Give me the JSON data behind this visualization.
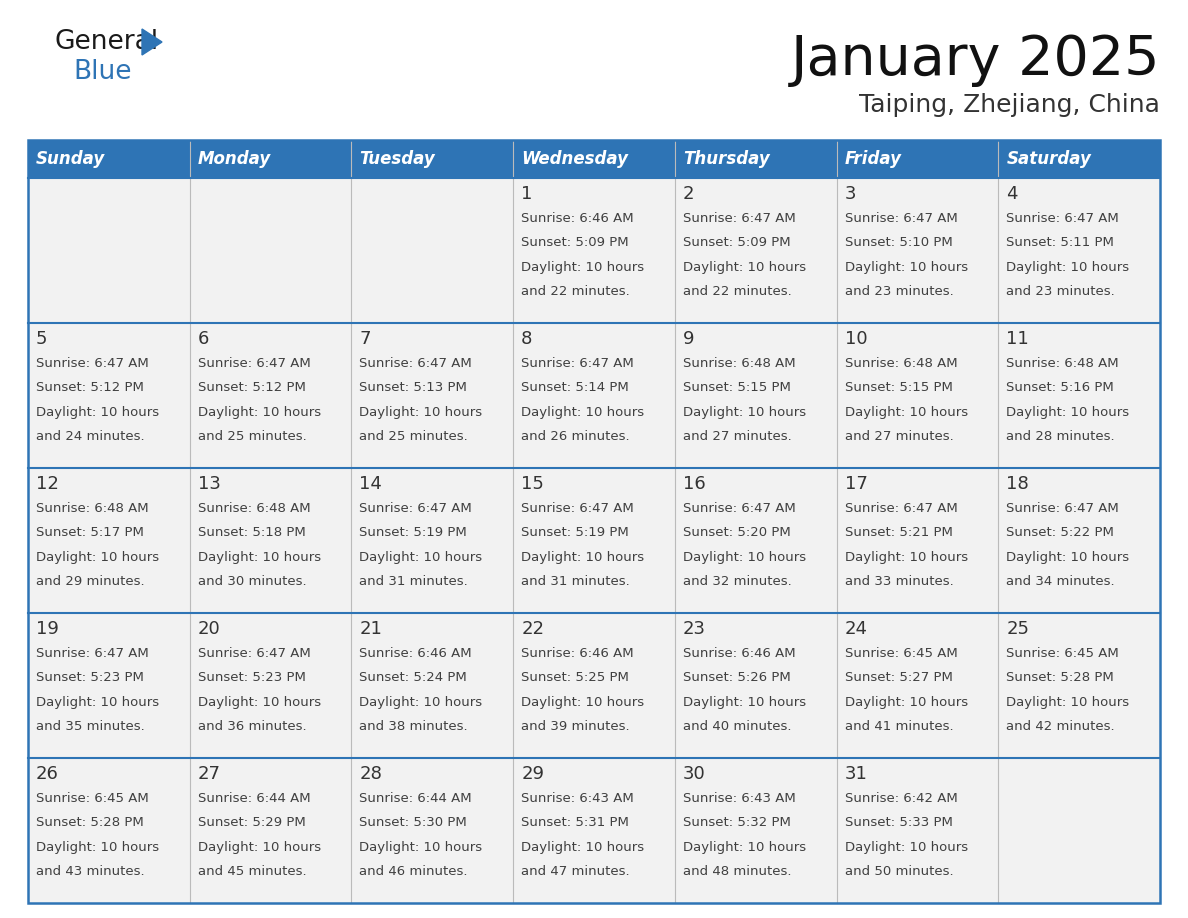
{
  "title": "January 2025",
  "subtitle": "Taiping, Zhejiang, China",
  "days_of_week": [
    "Sunday",
    "Monday",
    "Tuesday",
    "Wednesday",
    "Thursday",
    "Friday",
    "Saturday"
  ],
  "header_bg": "#2E74B5",
  "header_text": "#FFFFFF",
  "cell_bg_light": "#F2F2F2",
  "cell_bg_white": "#FFFFFF",
  "border_color": "#2E74B5",
  "text_color": "#404040",
  "day_num_color": "#333333",
  "logo_general_color": "#1a1a1a",
  "logo_blue_color": "#2E74B5",
  "row_border_color": "#2E74B5",
  "calendar_data": [
    [
      null,
      null,
      null,
      {
        "day": 1,
        "sunrise": "6:46 AM",
        "sunset": "5:09 PM",
        "daylight": "10 hours",
        "daylight2": "and 22 minutes."
      },
      {
        "day": 2,
        "sunrise": "6:47 AM",
        "sunset": "5:09 PM",
        "daylight": "10 hours",
        "daylight2": "and 22 minutes."
      },
      {
        "day": 3,
        "sunrise": "6:47 AM",
        "sunset": "5:10 PM",
        "daylight": "10 hours",
        "daylight2": "and 23 minutes."
      },
      {
        "day": 4,
        "sunrise": "6:47 AM",
        "sunset": "5:11 PM",
        "daylight": "10 hours",
        "daylight2": "and 23 minutes."
      }
    ],
    [
      {
        "day": 5,
        "sunrise": "6:47 AM",
        "sunset": "5:12 PM",
        "daylight": "10 hours",
        "daylight2": "and 24 minutes."
      },
      {
        "day": 6,
        "sunrise": "6:47 AM",
        "sunset": "5:12 PM",
        "daylight": "10 hours",
        "daylight2": "and 25 minutes."
      },
      {
        "day": 7,
        "sunrise": "6:47 AM",
        "sunset": "5:13 PM",
        "daylight": "10 hours",
        "daylight2": "and 25 minutes."
      },
      {
        "day": 8,
        "sunrise": "6:47 AM",
        "sunset": "5:14 PM",
        "daylight": "10 hours",
        "daylight2": "and 26 minutes."
      },
      {
        "day": 9,
        "sunrise": "6:48 AM",
        "sunset": "5:15 PM",
        "daylight": "10 hours",
        "daylight2": "and 27 minutes."
      },
      {
        "day": 10,
        "sunrise": "6:48 AM",
        "sunset": "5:15 PM",
        "daylight": "10 hours",
        "daylight2": "and 27 minutes."
      },
      {
        "day": 11,
        "sunrise": "6:48 AM",
        "sunset": "5:16 PM",
        "daylight": "10 hours",
        "daylight2": "and 28 minutes."
      }
    ],
    [
      {
        "day": 12,
        "sunrise": "6:48 AM",
        "sunset": "5:17 PM",
        "daylight": "10 hours",
        "daylight2": "and 29 minutes."
      },
      {
        "day": 13,
        "sunrise": "6:48 AM",
        "sunset": "5:18 PM",
        "daylight": "10 hours",
        "daylight2": "and 30 minutes."
      },
      {
        "day": 14,
        "sunrise": "6:47 AM",
        "sunset": "5:19 PM",
        "daylight": "10 hours",
        "daylight2": "and 31 minutes."
      },
      {
        "day": 15,
        "sunrise": "6:47 AM",
        "sunset": "5:19 PM",
        "daylight": "10 hours",
        "daylight2": "and 31 minutes."
      },
      {
        "day": 16,
        "sunrise": "6:47 AM",
        "sunset": "5:20 PM",
        "daylight": "10 hours",
        "daylight2": "and 32 minutes."
      },
      {
        "day": 17,
        "sunrise": "6:47 AM",
        "sunset": "5:21 PM",
        "daylight": "10 hours",
        "daylight2": "and 33 minutes."
      },
      {
        "day": 18,
        "sunrise": "6:47 AM",
        "sunset": "5:22 PM",
        "daylight": "10 hours",
        "daylight2": "and 34 minutes."
      }
    ],
    [
      {
        "day": 19,
        "sunrise": "6:47 AM",
        "sunset": "5:23 PM",
        "daylight": "10 hours",
        "daylight2": "and 35 minutes."
      },
      {
        "day": 20,
        "sunrise": "6:47 AM",
        "sunset": "5:23 PM",
        "daylight": "10 hours",
        "daylight2": "and 36 minutes."
      },
      {
        "day": 21,
        "sunrise": "6:46 AM",
        "sunset": "5:24 PM",
        "daylight": "10 hours",
        "daylight2": "and 38 minutes."
      },
      {
        "day": 22,
        "sunrise": "6:46 AM",
        "sunset": "5:25 PM",
        "daylight": "10 hours",
        "daylight2": "and 39 minutes."
      },
      {
        "day": 23,
        "sunrise": "6:46 AM",
        "sunset": "5:26 PM",
        "daylight": "10 hours",
        "daylight2": "and 40 minutes."
      },
      {
        "day": 24,
        "sunrise": "6:45 AM",
        "sunset": "5:27 PM",
        "daylight": "10 hours",
        "daylight2": "and 41 minutes."
      },
      {
        "day": 25,
        "sunrise": "6:45 AM",
        "sunset": "5:28 PM",
        "daylight": "10 hours",
        "daylight2": "and 42 minutes."
      }
    ],
    [
      {
        "day": 26,
        "sunrise": "6:45 AM",
        "sunset": "5:28 PM",
        "daylight": "10 hours",
        "daylight2": "and 43 minutes."
      },
      {
        "day": 27,
        "sunrise": "6:44 AM",
        "sunset": "5:29 PM",
        "daylight": "10 hours",
        "daylight2": "and 45 minutes."
      },
      {
        "day": 28,
        "sunrise": "6:44 AM",
        "sunset": "5:30 PM",
        "daylight": "10 hours",
        "daylight2": "and 46 minutes."
      },
      {
        "day": 29,
        "sunrise": "6:43 AM",
        "sunset": "5:31 PM",
        "daylight": "10 hours",
        "daylight2": "and 47 minutes."
      },
      {
        "day": 30,
        "sunrise": "6:43 AM",
        "sunset": "5:32 PM",
        "daylight": "10 hours",
        "daylight2": "and 48 minutes."
      },
      {
        "day": 31,
        "sunrise": "6:42 AM",
        "sunset": "5:33 PM",
        "daylight": "10 hours",
        "daylight2": "and 50 minutes."
      },
      null
    ]
  ]
}
